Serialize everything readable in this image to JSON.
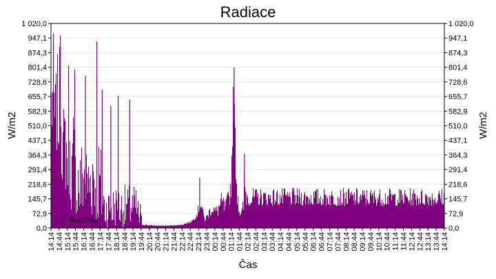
{
  "chart_data": {
    "type": "area",
    "title": "Radiace",
    "xlabel": "Čas",
    "ylabel_left": "W/m2",
    "ylabel_right": "W/m2",
    "ylim": [
      0,
      1020
    ],
    "yticks": [
      "0,0",
      "72,9",
      "145,7",
      "218,6",
      "291,4",
      "364,3",
      "437,1",
      "510,0",
      "582,9",
      "655,7",
      "728,6",
      "801,4",
      "874,3",
      "947,1",
      "1 020,0"
    ],
    "xticks": [
      "14:14",
      "14:44",
      "15:14",
      "15:44",
      "16:14",
      "16:44",
      "17:14",
      "17:44",
      "18:14",
      "18:44",
      "19:14",
      "19:44",
      "20:14",
      "20:44",
      "21:14",
      "21:44",
      "22:14",
      "22:44",
      "23:14",
      "23:44",
      "00:14",
      "00:44",
      "01:14",
      "01:44",
      "02:14",
      "02:44",
      "03:14",
      "03:44",
      "04:14",
      "04:44",
      "05:14",
      "05:44",
      "06:14",
      "06:44",
      "07:14",
      "07:44",
      "08:14",
      "08:44",
      "09:14",
      "09:44",
      "10:14",
      "10:44",
      "11:14",
      "11:44",
      "12:14",
      "12:44",
      "13:14",
      "13:44",
      "14:14"
    ],
    "grid": true,
    "legend_position": "bottom-left",
    "series": [
      {
        "name": "Bouřňák",
        "color": "#800080",
        "envelope": [
          [
            0,
            420,
            870
          ],
          [
            0.25,
            430,
            950
          ],
          [
            0.5,
            300,
            780
          ],
          [
            0.75,
            380,
            860
          ],
          [
            1,
            350,
            900
          ],
          [
            1.25,
            280,
            940
          ],
          [
            1.5,
            170,
            620
          ],
          [
            1.75,
            180,
            700
          ],
          [
            2,
            170,
            560
          ],
          [
            2.25,
            150,
            560
          ],
          [
            2.5,
            80,
            440
          ],
          [
            2.75,
            100,
            660
          ],
          [
            3,
            70,
            470
          ],
          [
            3.25,
            50,
            450
          ],
          [
            3.5,
            40,
            430
          ],
          [
            3.75,
            50,
            470
          ],
          [
            4,
            60,
            520
          ],
          [
            4.25,
            80,
            440
          ],
          [
            4.5,
            60,
            440
          ],
          [
            4.75,
            50,
            410
          ],
          [
            5,
            40,
            560
          ],
          [
            5.25,
            30,
            560
          ],
          [
            5.5,
            20,
            420
          ],
          [
            5.75,
            15,
            520
          ],
          [
            6,
            10,
            450
          ],
          [
            6.25,
            10,
            390
          ],
          [
            6.5,
            10,
            220
          ],
          [
            6.75,
            5,
            220
          ],
          [
            7,
            5,
            220
          ],
          [
            7.25,
            5,
            220
          ],
          [
            7.5,
            5,
            220
          ],
          [
            7.75,
            5,
            220
          ],
          [
            8,
            5,
            220
          ],
          [
            8.25,
            5,
            220
          ],
          [
            8.5,
            5,
            220
          ],
          [
            8.75,
            5,
            220
          ],
          [
            9,
            5,
            220
          ],
          [
            9.25,
            5,
            220
          ],
          [
            9.5,
            5,
            220
          ],
          [
            9.75,
            5,
            220
          ],
          [
            10,
            5,
            220
          ],
          [
            10.25,
            5,
            220
          ],
          [
            10.5,
            5,
            200
          ],
          [
            10.75,
            5,
            120
          ],
          [
            11,
            10,
            80
          ],
          [
            11.25,
            10,
            40
          ],
          [
            11.5,
            12,
            20
          ],
          [
            12,
            12,
            15
          ],
          [
            13,
            10,
            14
          ],
          [
            14,
            10,
            13
          ],
          [
            15,
            12,
            14
          ],
          [
            16,
            15,
            18
          ],
          [
            16.5,
            20,
            28
          ],
          [
            17,
            25,
            35
          ],
          [
            17.5,
            40,
            55
          ],
          [
            17.75,
            50,
            80
          ],
          [
            18,
            60,
            120
          ],
          [
            18.15,
            80,
            240
          ],
          [
            18.3,
            90,
            160
          ],
          [
            18.5,
            60,
            110
          ],
          [
            18.75,
            30,
            60
          ],
          [
            19,
            40,
            70
          ],
          [
            19.25,
            50,
            100
          ],
          [
            19.5,
            60,
            130
          ],
          [
            19.75,
            70,
            150
          ],
          [
            20,
            60,
            110
          ],
          [
            20.25,
            50,
            120
          ],
          [
            20.5,
            60,
            150
          ],
          [
            20.75,
            70,
            180
          ],
          [
            21,
            80,
            170
          ],
          [
            21.25,
            70,
            140
          ],
          [
            21.5,
            80,
            170
          ],
          [
            21.75,
            100,
            220
          ],
          [
            22,
            150,
            300
          ],
          [
            22.15,
            400,
            620
          ],
          [
            22.3,
            550,
            790
          ],
          [
            22.45,
            400,
            600
          ],
          [
            22.6,
            200,
            350
          ],
          [
            22.75,
            100,
            250
          ],
          [
            22.9,
            80,
            220
          ],
          [
            23,
            60,
            120
          ],
          [
            23.25,
            40,
            100
          ],
          [
            23.5,
            60,
            160
          ],
          [
            23.6,
            80,
            360
          ],
          [
            23.75,
            100,
            280
          ],
          [
            24,
            110,
            200
          ]
        ],
        "spikes": [
          [
            0.3,
            970
          ],
          [
            1.15,
            960
          ],
          [
            2.15,
            810
          ],
          [
            2.9,
            790
          ],
          [
            4.2,
            760
          ],
          [
            5.6,
            930
          ],
          [
            6.25,
            690
          ],
          [
            7.3,
            610
          ],
          [
            8.2,
            660
          ],
          [
            9.6,
            640
          ],
          [
            10.9,
            120
          ],
          [
            18.15,
            250
          ],
          [
            22.35,
            800
          ],
          [
            23.6,
            370
          ]
        ]
      }
    ]
  }
}
